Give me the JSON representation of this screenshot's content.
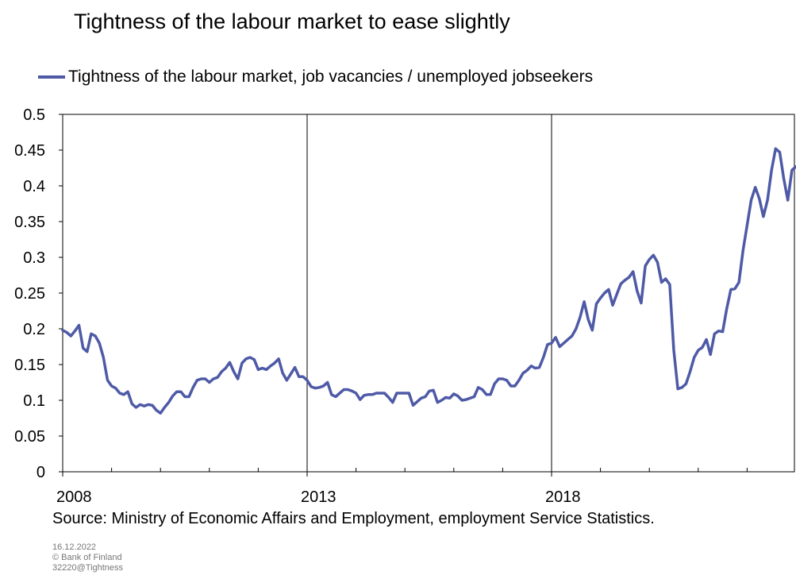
{
  "title": "Tightness of the labour market to ease slightly",
  "source": "Source: Ministry of Economic Affairs and Employment, employment Service Statistics.",
  "footer": {
    "date": "16.12.2022",
    "copyright": "© Bank of Finland",
    "code": "32220@Tightness"
  },
  "colors": {
    "series": "#4e5aa6",
    "grid": "#000000"
  },
  "chart_data": {
    "type": "line",
    "title": "Tightness of the labour market to ease slightly",
    "xlabel": "",
    "ylabel": "",
    "ylim": [
      0,
      0.5
    ],
    "yticks": [
      0,
      0.05,
      0.1,
      0.15,
      0.2,
      0.25,
      0.3,
      0.35,
      0.4,
      0.45,
      0.5
    ],
    "ytick_labels": [
      "0",
      "0.05",
      "0.1",
      "0.15",
      "0.2",
      "0.25",
      "0.3",
      "0.35",
      "0.4",
      "0.45",
      "0.5"
    ],
    "xlim": [
      "2008-01",
      "2022-11"
    ],
    "xtick_labels": [
      "2008",
      "2013",
      "2018"
    ],
    "xticks": [
      "2008-01",
      "2013-01",
      "2018-01"
    ],
    "minor_xticks": [
      "2009-01",
      "2010-01",
      "2011-01",
      "2012-01",
      "2014-01",
      "2015-01",
      "2016-01",
      "2017-01",
      "2019-01",
      "2020-01",
      "2021-01",
      "2022-01"
    ],
    "grid": "vertical major lines at 2013 and 2018",
    "legend": "top-left",
    "series": [
      {
        "name": "Tightness of the labour market, job vacancies / unemployed jobseekers",
        "color": "#4e5aa6",
        "points": [
          [
            "2008-01",
            0.198
          ],
          [
            "2008-02",
            0.195
          ],
          [
            "2008-03",
            0.19
          ],
          [
            "2008-04",
            0.197
          ],
          [
            "2008-05",
            0.205
          ],
          [
            "2008-06",
            0.173
          ],
          [
            "2008-07",
            0.168
          ],
          [
            "2008-08",
            0.193
          ],
          [
            "2008-09",
            0.19
          ],
          [
            "2008-10",
            0.18
          ],
          [
            "2008-11",
            0.16
          ],
          [
            "2008-12",
            0.128
          ],
          [
            "2009-01",
            0.12
          ],
          [
            "2009-02",
            0.117
          ],
          [
            "2009-03",
            0.11
          ],
          [
            "2009-04",
            0.108
          ],
          [
            "2009-05",
            0.112
          ],
          [
            "2009-06",
            0.095
          ],
          [
            "2009-07",
            0.09
          ],
          [
            "2009-08",
            0.094
          ],
          [
            "2009-09",
            0.092
          ],
          [
            "2009-10",
            0.094
          ],
          [
            "2009-11",
            0.093
          ],
          [
            "2009-12",
            0.086
          ],
          [
            "2010-01",
            0.082
          ],
          [
            "2010-02",
            0.09
          ],
          [
            "2010-03",
            0.097
          ],
          [
            "2010-04",
            0.106
          ],
          [
            "2010-05",
            0.112
          ],
          [
            "2010-06",
            0.112
          ],
          [
            "2010-07",
            0.105
          ],
          [
            "2010-08",
            0.105
          ],
          [
            "2010-09",
            0.118
          ],
          [
            "2010-10",
            0.128
          ],
          [
            "2010-11",
            0.13
          ],
          [
            "2010-12",
            0.13
          ],
          [
            "2011-01",
            0.125
          ],
          [
            "2011-02",
            0.13
          ],
          [
            "2011-03",
            0.132
          ],
          [
            "2011-04",
            0.14
          ],
          [
            "2011-05",
            0.145
          ],
          [
            "2011-06",
            0.153
          ],
          [
            "2011-07",
            0.14
          ],
          [
            "2011-08",
            0.13
          ],
          [
            "2011-09",
            0.152
          ],
          [
            "2011-10",
            0.158
          ],
          [
            "2011-11",
            0.16
          ],
          [
            "2011-12",
            0.157
          ],
          [
            "2012-01",
            0.143
          ],
          [
            "2012-02",
            0.145
          ],
          [
            "2012-03",
            0.143
          ],
          [
            "2012-04",
            0.148
          ],
          [
            "2012-05",
            0.152
          ],
          [
            "2012-06",
            0.158
          ],
          [
            "2012-07",
            0.138
          ],
          [
            "2012-08",
            0.128
          ],
          [
            "2012-09",
            0.137
          ],
          [
            "2012-10",
            0.146
          ],
          [
            "2012-11",
            0.133
          ],
          [
            "2012-12",
            0.133
          ],
          [
            "2013-01",
            0.128
          ],
          [
            "2013-02",
            0.119
          ],
          [
            "2013-03",
            0.117
          ],
          [
            "2013-04",
            0.118
          ],
          [
            "2013-05",
            0.12
          ],
          [
            "2013-06",
            0.125
          ],
          [
            "2013-07",
            0.108
          ],
          [
            "2013-08",
            0.105
          ],
          [
            "2013-09",
            0.11
          ],
          [
            "2013-10",
            0.115
          ],
          [
            "2013-11",
            0.115
          ],
          [
            "2013-12",
            0.113
          ],
          [
            "2014-01",
            0.11
          ],
          [
            "2014-02",
            0.101
          ],
          [
            "2014-03",
            0.107
          ],
          [
            "2014-04",
            0.108
          ],
          [
            "2014-05",
            0.108
          ],
          [
            "2014-06",
            0.11
          ],
          [
            "2014-07",
            0.11
          ],
          [
            "2014-08",
            0.11
          ],
          [
            "2014-09",
            0.104
          ],
          [
            "2014-10",
            0.097
          ],
          [
            "2014-11",
            0.11
          ],
          [
            "2014-12",
            0.11
          ],
          [
            "2015-01",
            0.11
          ],
          [
            "2015-02",
            0.11
          ],
          [
            "2015-03",
            0.093
          ],
          [
            "2015-04",
            0.098
          ],
          [
            "2015-05",
            0.103
          ],
          [
            "2015-06",
            0.105
          ],
          [
            "2015-07",
            0.113
          ],
          [
            "2015-08",
            0.114
          ],
          [
            "2015-09",
            0.097
          ],
          [
            "2015-10",
            0.1
          ],
          [
            "2015-11",
            0.104
          ],
          [
            "2015-12",
            0.103
          ],
          [
            "2016-01",
            0.109
          ],
          [
            "2016-02",
            0.106
          ],
          [
            "2016-03",
            0.1
          ],
          [
            "2016-04",
            0.101
          ],
          [
            "2016-05",
            0.103
          ],
          [
            "2016-06",
            0.105
          ],
          [
            "2016-07",
            0.118
          ],
          [
            "2016-08",
            0.115
          ],
          [
            "2016-09",
            0.108
          ],
          [
            "2016-10",
            0.108
          ],
          [
            "2016-11",
            0.123
          ],
          [
            "2016-12",
            0.13
          ],
          [
            "2017-01",
            0.13
          ],
          [
            "2017-02",
            0.128
          ],
          [
            "2017-03",
            0.12
          ],
          [
            "2017-04",
            0.12
          ],
          [
            "2017-05",
            0.128
          ],
          [
            "2017-06",
            0.138
          ],
          [
            "2017-07",
            0.142
          ],
          [
            "2017-08",
            0.148
          ],
          [
            "2017-09",
            0.145
          ],
          [
            "2017-10",
            0.146
          ],
          [
            "2017-11",
            0.16
          ],
          [
            "2017-12",
            0.178
          ],
          [
            "2018-01",
            0.18
          ],
          [
            "2018-02",
            0.188
          ],
          [
            "2018-03",
            0.175
          ],
          [
            "2018-04",
            0.18
          ],
          [
            "2018-05",
            0.185
          ],
          [
            "2018-06",
            0.19
          ],
          [
            "2018-07",
            0.2
          ],
          [
            "2018-08",
            0.216
          ],
          [
            "2018-09",
            0.238
          ],
          [
            "2018-10",
            0.213
          ],
          [
            "2018-11",
            0.198
          ],
          [
            "2018-12",
            0.235
          ],
          [
            "2019-01",
            0.243
          ],
          [
            "2019-02",
            0.25
          ],
          [
            "2019-03",
            0.255
          ],
          [
            "2019-04",
            0.233
          ],
          [
            "2019-05",
            0.248
          ],
          [
            "2019-06",
            0.263
          ],
          [
            "2019-07",
            0.268
          ],
          [
            "2019-08",
            0.272
          ],
          [
            "2019-09",
            0.28
          ],
          [
            "2019-10",
            0.253
          ],
          [
            "2019-11",
            0.236
          ],
          [
            "2019-12",
            0.288
          ],
          [
            "2020-01",
            0.297
          ],
          [
            "2020-02",
            0.303
          ],
          [
            "2020-03",
            0.293
          ],
          [
            "2020-04",
            0.265
          ],
          [
            "2020-05",
            0.27
          ],
          [
            "2020-06",
            0.262
          ],
          [
            "2020-07",
            0.17
          ],
          [
            "2020-08",
            0.116
          ],
          [
            "2020-09",
            0.118
          ],
          [
            "2020-10",
            0.123
          ],
          [
            "2020-11",
            0.14
          ],
          [
            "2020-12",
            0.16
          ],
          [
            "2021-01",
            0.17
          ],
          [
            "2021-02",
            0.174
          ],
          [
            "2021-03",
            0.185
          ],
          [
            "2021-04",
            0.164
          ],
          [
            "2021-05",
            0.193
          ],
          [
            "2021-06",
            0.197
          ],
          [
            "2021-07",
            0.196
          ],
          [
            "2021-08",
            0.228
          ],
          [
            "2021-09",
            0.255
          ],
          [
            "2021-10",
            0.256
          ],
          [
            "2021-11",
            0.265
          ],
          [
            "2021-12",
            0.31
          ],
          [
            "2022-01",
            0.345
          ],
          [
            "2022-02",
            0.38
          ],
          [
            "2022-03",
            0.398
          ],
          [
            "2022-04",
            0.382
          ],
          [
            "2022-05",
            0.357
          ],
          [
            "2022-06",
            0.38
          ],
          [
            "2022-07",
            0.422
          ],
          [
            "2022-08",
            0.452
          ],
          [
            "2022-09",
            0.447
          ],
          [
            "2022-10",
            0.41
          ],
          [
            "2022-11",
            0.38
          ],
          [
            "2022-12",
            0.422
          ],
          [
            "2023-01",
            0.427
          ],
          [
            "2023-02",
            0.42
          ]
        ]
      }
    ]
  }
}
